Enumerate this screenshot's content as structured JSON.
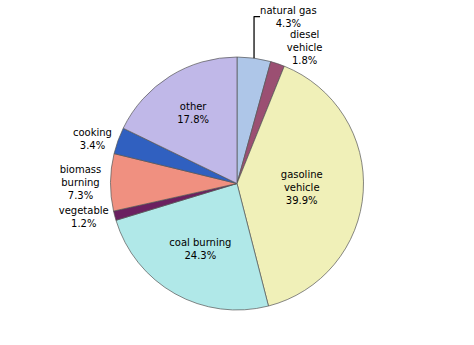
{
  "chart_data": {
    "type": "pie",
    "categories": [
      "natural gas",
      "diesel\nvehicle",
      "gasoline\nvehicle",
      "coal burning",
      "vegetable",
      "biomass\nburning",
      "cooking",
      "other"
    ],
    "values": [
      4.3,
      1.8,
      39.9,
      24.3,
      1.2,
      7.3,
      3.4,
      17.8
    ],
    "value_labels": [
      "4.3%",
      "1.8%",
      "39.9%",
      "24.3%",
      "1.2%",
      "7.3%",
      "3.4%",
      "17.8%"
    ],
    "colors": [
      "#aec6e8",
      "#9b4f72",
      "#f0f0b8",
      "#b0e8e8",
      "#6b2060",
      "#f09080",
      "#3060c0",
      "#c0b8e8"
    ],
    "data_labels": true
  }
}
